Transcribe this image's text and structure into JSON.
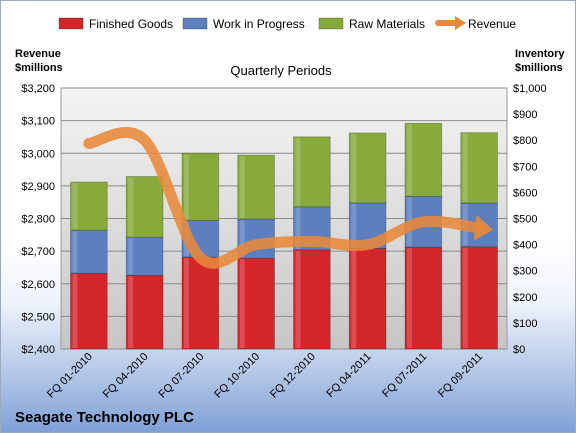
{
  "company_name": "Seagate Technology PLC",
  "chart_data": {
    "type": "bar",
    "subtype": "stacked bar with line overlay, dual axis",
    "title": "Quarterly Periods",
    "categories": [
      "FQ 01-2010",
      "FQ 04-2010",
      "FQ 07-2010",
      "FQ 10-2010",
      "FQ 12-2010",
      "FQ 04-2011",
      "FQ 07-2011",
      "FQ 09-2011"
    ],
    "left_axis": {
      "label_line1": "Revenue",
      "label_line2": "$millions",
      "ylim": [
        2400,
        3200
      ],
      "ticks": [
        "$2,400",
        "$2,500",
        "$2,600",
        "$2,700",
        "$2,800",
        "$2,900",
        "$3,000",
        "$3,100",
        "$3,200"
      ]
    },
    "right_axis": {
      "label_line1": "Inventory",
      "label_line2": "$millions",
      "ylim": [
        0,
        1000
      ],
      "ticks": [
        "$0",
        "$100",
        "$200",
        "$300",
        "$400",
        "$500",
        "$600",
        "$700",
        "$800",
        "$900",
        "$1,000"
      ]
    },
    "grid": true,
    "legend_position": "top",
    "series": [
      {
        "name": "Finished Goods",
        "kind": "bar",
        "axis": "right",
        "color": "#d3262b",
        "values": [
          290,
          282,
          352,
          348,
          380,
          385,
          390,
          392
        ]
      },
      {
        "name": "Work in Progress",
        "kind": "bar",
        "axis": "right",
        "color": "#5b7fbf",
        "values": [
          165,
          146,
          140,
          150,
          165,
          175,
          195,
          167
        ]
      },
      {
        "name": "Raw Materials",
        "kind": "bar",
        "axis": "right",
        "color": "#88aa3b",
        "values": [
          185,
          233,
          258,
          245,
          268,
          268,
          280,
          270
        ]
      },
      {
        "name": "Revenue",
        "kind": "line",
        "axis": "left",
        "color": "#e8893a",
        "values": [
          3030,
          3040,
          2680,
          2720,
          2730,
          2720,
          2790,
          2770
        ]
      }
    ]
  }
}
